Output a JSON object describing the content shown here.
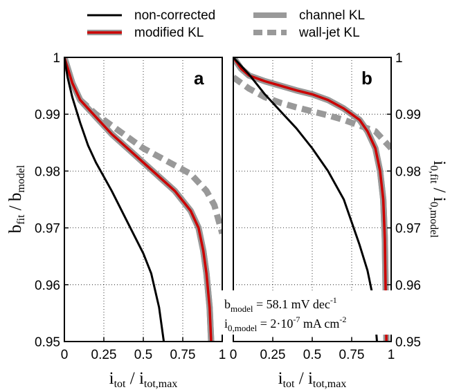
{
  "chart_data": {
    "type": "line",
    "colors": {
      "non_corrected": "#000000",
      "modified_kl": "#cc0000",
      "channel_kl": "#999999",
      "wall_jet_kl": "#999999"
    },
    "legend": {
      "placement": "top",
      "entries": [
        "non-corrected",
        "modified KL",
        "channel KL",
        "wall-jet KL"
      ]
    },
    "annotation": {
      "b_model": {
        "label_main": "b",
        "label_sub": "model",
        "value": " = 58.1 mV dec",
        "exp": "-1"
      },
      "i0_model": {
        "label_main": "i",
        "label_sub": "0,model",
        "value": " = 2·10",
        "exp": "-7",
        "unit": " mA cm",
        "unit_exp": "-2"
      }
    },
    "panels": [
      {
        "letter": "a",
        "xlabel": {
          "main": "i",
          "sub": "tot",
          "sep": " / ",
          "main2": "i",
          "sub2": "tot,max"
        },
        "ylabel": {
          "main": "b",
          "sub": "fit",
          "sep": " / ",
          "main2": "b",
          "sub2": "model"
        },
        "ylabel_side": "left",
        "xlim": [
          0,
          1
        ],
        "ylim": [
          0.95,
          1
        ],
        "xticks": [
          "0",
          "0.25",
          "0.5",
          "0.75",
          "1"
        ],
        "yticks": [
          "0.95",
          "0.96",
          "0.97",
          "0.98",
          "0.99",
          "1"
        ],
        "grid": true,
        "series": [
          {
            "name": "non-corrected",
            "style": "solid-black",
            "x": [
              0,
              0.02,
              0.05,
              0.1,
              0.15,
              0.2,
              0.25,
              0.3,
              0.4,
              0.5,
              0.55,
              0.6,
              0.63
            ],
            "y": [
              1.0,
              0.9965,
              0.993,
              0.9885,
              0.9845,
              0.9815,
              0.979,
              0.9765,
              0.971,
              0.9655,
              0.962,
              0.956,
              0.95
            ]
          },
          {
            "name": "channel KL",
            "style": "solid-gray-wide",
            "x": [
              0,
              0.05,
              0.1,
              0.2,
              0.3,
              0.4,
              0.5,
              0.6,
              0.7,
              0.8,
              0.85,
              0.88,
              0.9,
              0.92,
              0.93
            ],
            "y": [
              1.0,
              0.9955,
              0.9925,
              0.9895,
              0.9865,
              0.984,
              0.9815,
              0.979,
              0.9765,
              0.973,
              0.97,
              0.966,
              0.962,
              0.956,
              0.95
            ]
          },
          {
            "name": "modified KL",
            "style": "solid-red",
            "x": [
              0,
              0.05,
              0.1,
              0.2,
              0.3,
              0.4,
              0.5,
              0.6,
              0.7,
              0.8,
              0.85,
              0.88,
              0.9,
              0.92,
              0.93
            ],
            "y": [
              1.0,
              0.9955,
              0.9925,
              0.9895,
              0.9865,
              0.984,
              0.9815,
              0.979,
              0.9765,
              0.973,
              0.97,
              0.966,
              0.962,
              0.956,
              0.95
            ]
          },
          {
            "name": "wall-jet KL",
            "style": "dashed-gray",
            "x": [
              0.1,
              0.2,
              0.3,
              0.4,
              0.5,
              0.6,
              0.7,
              0.8,
              0.85,
              0.9,
              0.95,
              1.0
            ],
            "y": [
              0.9925,
              0.99,
              0.988,
              0.986,
              0.984,
              0.9825,
              0.981,
              0.9795,
              0.978,
              0.9765,
              0.974,
              0.969
            ]
          }
        ]
      },
      {
        "letter": "b",
        "xlabel": {
          "main": "i",
          "sub": "tot",
          "sep": " / ",
          "main2": "i",
          "sub2": "tot,max"
        },
        "ylabel": {
          "main": "i",
          "sub": "0,fit",
          "sep": " / ",
          "main2": "i",
          "sub2": "0,model"
        },
        "ylabel_side": "right",
        "xlim": [
          0,
          1
        ],
        "ylim": [
          0.95,
          1
        ],
        "xticks": [
          "0",
          "0.25",
          "0.5",
          "0.75",
          "1"
        ],
        "yticks": [
          "0.95",
          "0.96",
          "0.97",
          "0.98",
          "0.99",
          "1"
        ],
        "grid": true,
        "series": [
          {
            "name": "non-corrected",
            "style": "solid-black",
            "x": [
              0,
              0.1,
              0.2,
              0.3,
              0.4,
              0.5,
              0.6,
              0.7,
              0.75,
              0.8,
              0.85,
              0.88,
              0.9,
              0.91
            ],
            "y": [
              1.0,
              0.997,
              0.9935,
              0.9905,
              0.9875,
              0.984,
              0.98,
              0.975,
              0.971,
              0.967,
              0.9625,
              0.9585,
              0.9535,
              0.95
            ]
          },
          {
            "name": "channel KL",
            "style": "solid-gray-wide",
            "x": [
              0,
              0.05,
              0.1,
              0.2,
              0.3,
              0.4,
              0.5,
              0.6,
              0.7,
              0.8,
              0.85,
              0.9,
              0.93,
              0.95,
              0.96,
              0.97
            ],
            "y": [
              1.0,
              0.998,
              0.9968,
              0.9958,
              0.995,
              0.9942,
              0.9935,
              0.9925,
              0.991,
              0.989,
              0.987,
              0.984,
              0.98,
              0.975,
              0.968,
              0.95
            ]
          },
          {
            "name": "modified KL",
            "style": "solid-red",
            "x": [
              0,
              0.05,
              0.1,
              0.2,
              0.3,
              0.4,
              0.5,
              0.6,
              0.7,
              0.8,
              0.85,
              0.9,
              0.93,
              0.95,
              0.96,
              0.97
            ],
            "y": [
              1.0,
              0.998,
              0.9968,
              0.9958,
              0.995,
              0.9942,
              0.9935,
              0.9925,
              0.991,
              0.989,
              0.987,
              0.984,
              0.98,
              0.975,
              0.968,
              0.95
            ]
          },
          {
            "name": "wall-jet KL",
            "style": "dashed-gray",
            "x": [
              0,
              0.1,
              0.2,
              0.3,
              0.4,
              0.5,
              0.6,
              0.7,
              0.8,
              0.9,
              0.95,
              1.0
            ],
            "y": [
              0.9965,
              0.9945,
              0.993,
              0.992,
              0.9912,
              0.9905,
              0.9898,
              0.989,
              0.988,
              0.987,
              0.9855,
              0.984
            ]
          }
        ]
      }
    ]
  }
}
